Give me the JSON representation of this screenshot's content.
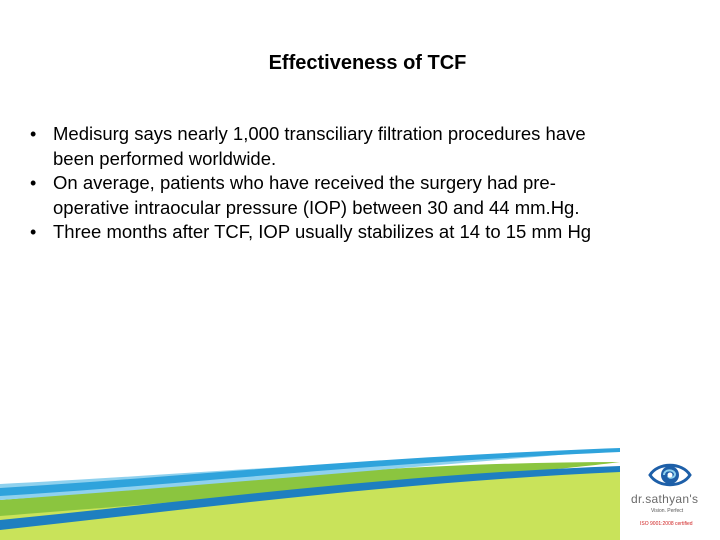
{
  "slide": {
    "title": "Effectiveness of TCF",
    "bullets": [
      {
        "line1": "Medisurg says nearly 1,000 transciliary filtration procedures have",
        "line2": "been performed worldwide."
      },
      {
        "line1": " On average, patients who have received the surgery had pre-",
        "line2": "operative intraocular pressure (IOP) between 30 and 44 mm.Hg."
      },
      {
        "line1": "Three months after TCF, IOP usually stabilizes at 14 to 15 mm Hg",
        "line2": ""
      }
    ],
    "bullet_glyph": "•"
  },
  "logo": {
    "name": "dr.sathyan's",
    "tagline": "Vision. Perfect",
    "certification": "ISO 9001:2008 certified",
    "icon": "eye-swirl-icon"
  },
  "colors": {
    "wave_dark": "#1e7fc0",
    "wave_mid": "#2fa3dc",
    "wave_light": "#8fd1ee",
    "wave_green": "#8bc53f",
    "wave_lime": "#c9e35a",
    "logo_blue": "#1d5fa8",
    "logo_red": "#d02020"
  }
}
